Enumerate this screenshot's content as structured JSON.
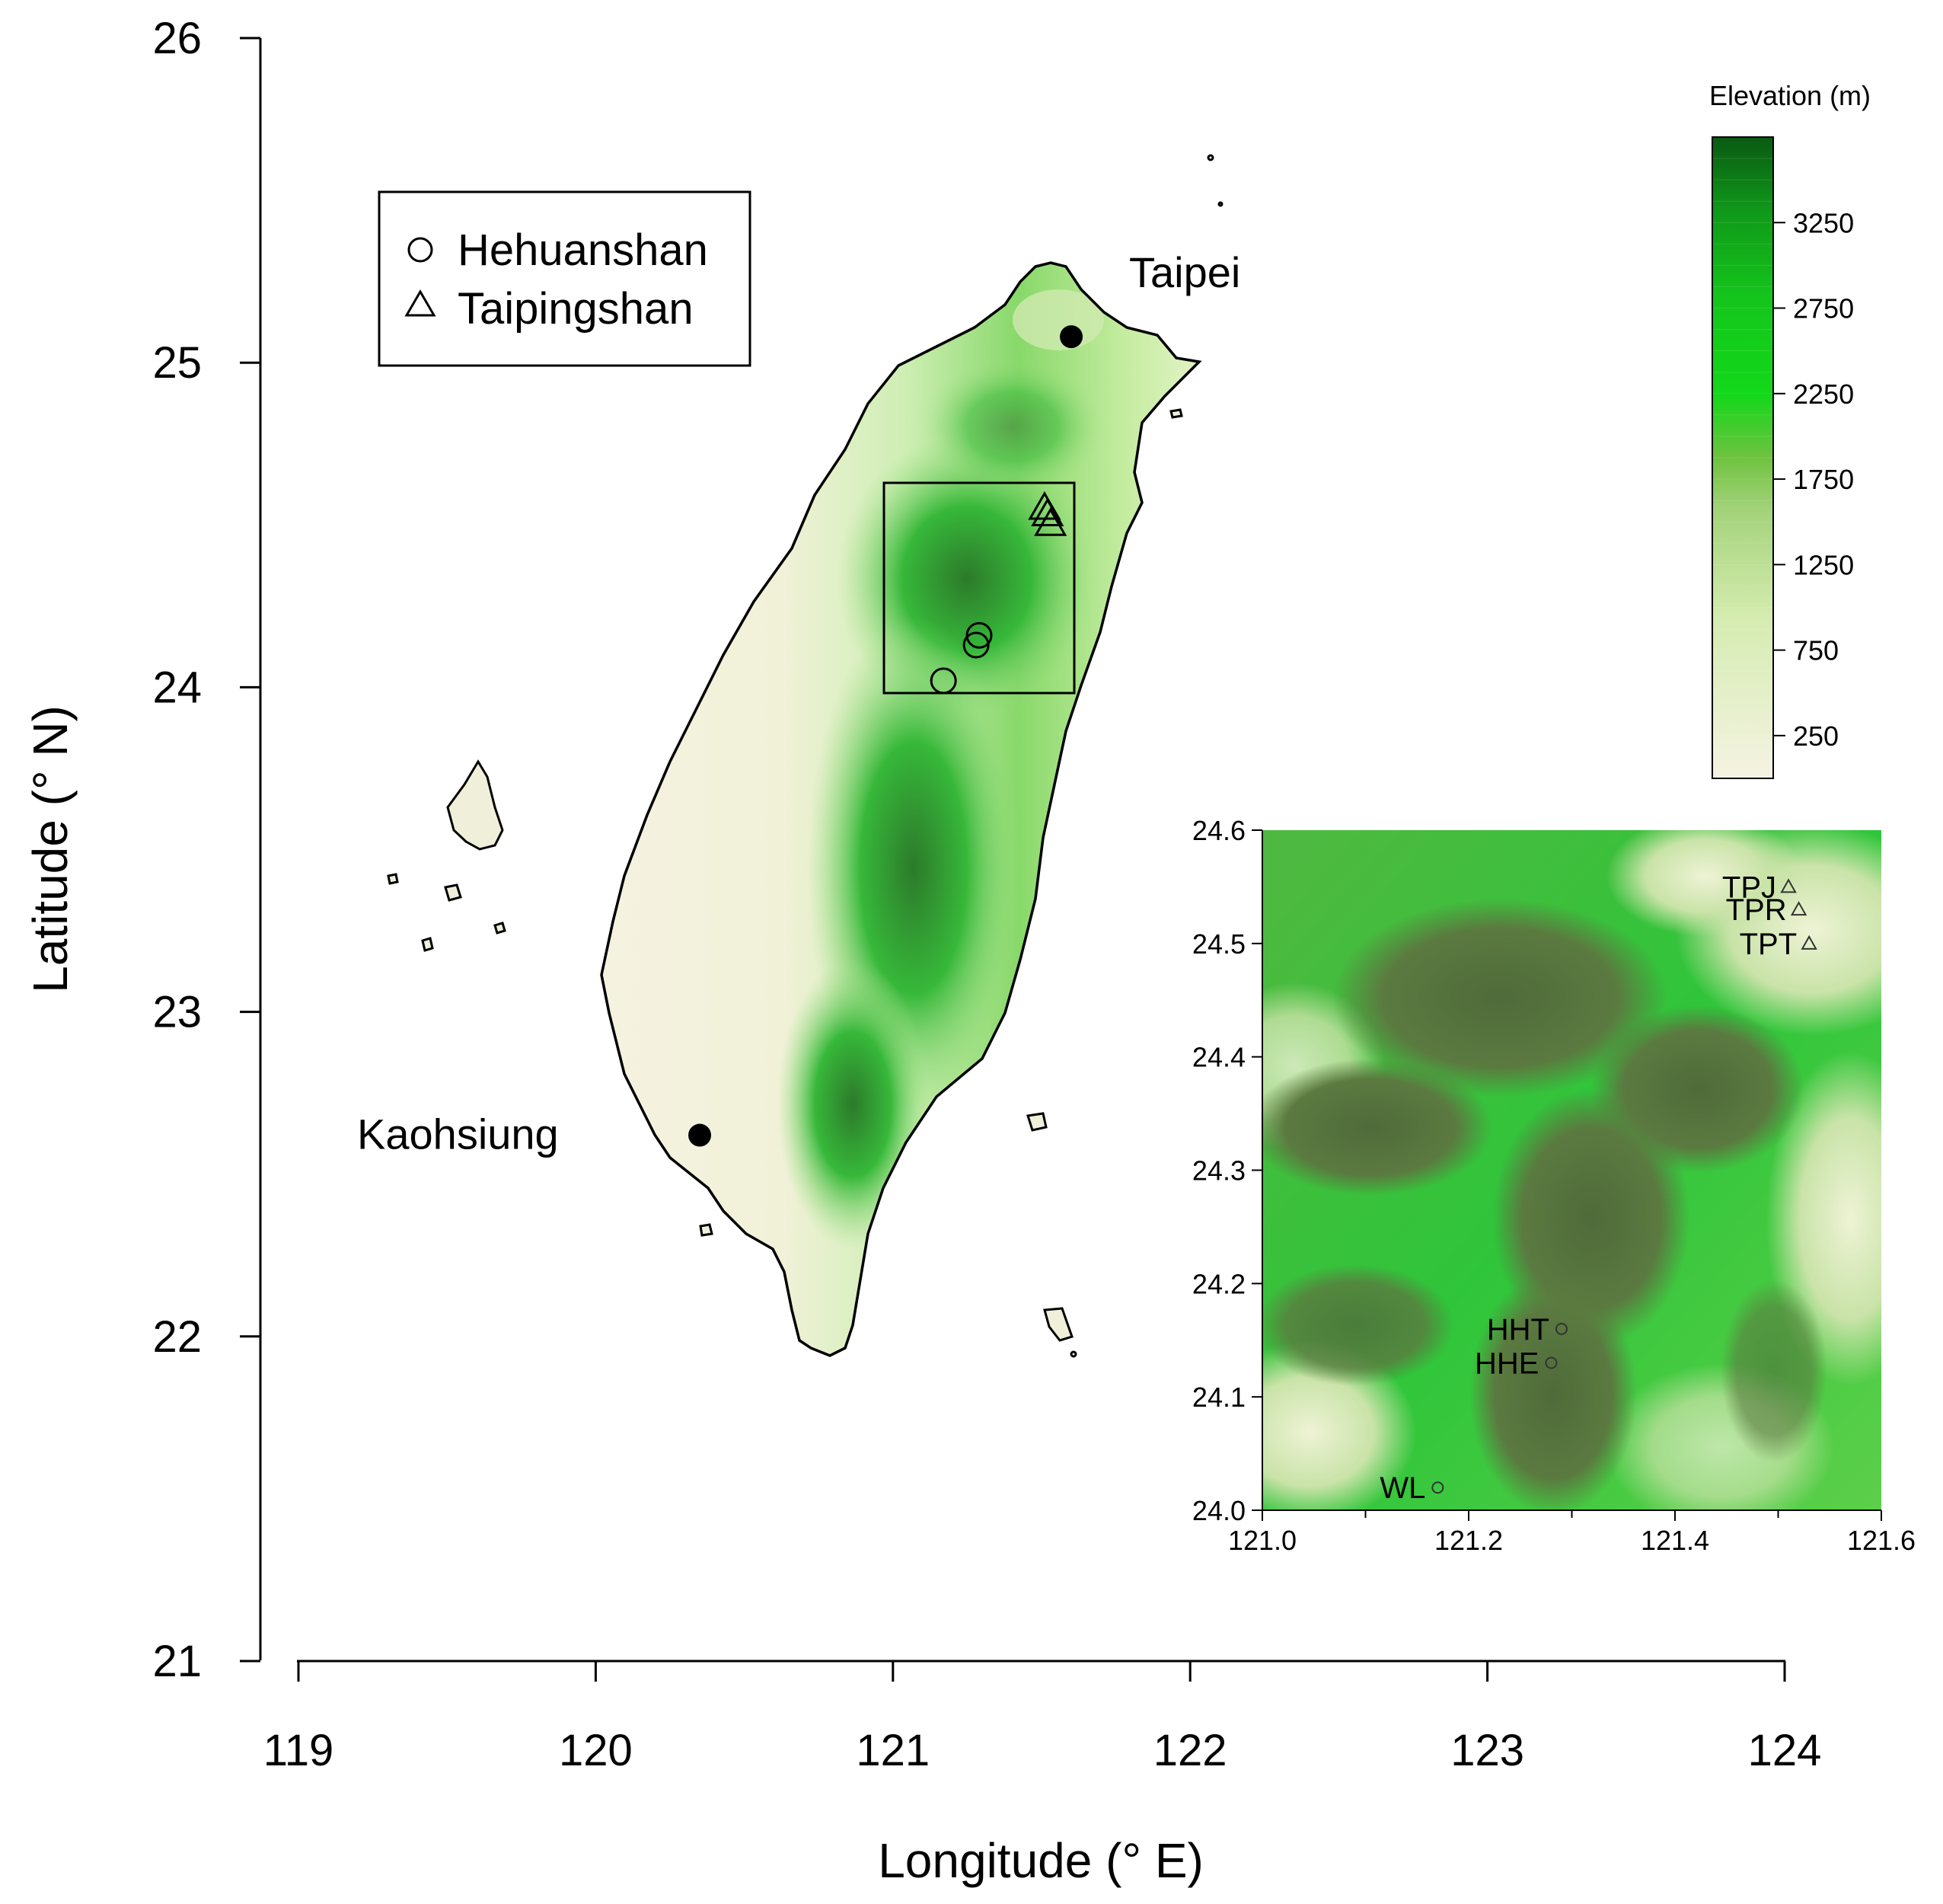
{
  "main_map": {
    "x_axis": {
      "label": "Longitude (° E)",
      "range": [
        119,
        124
      ],
      "ticks": [
        119,
        120,
        121,
        122,
        123,
        124
      ]
    },
    "y_axis": {
      "label": "Latitude (° N)",
      "range": [
        21,
        26
      ],
      "ticks": [
        21,
        22,
        23,
        24,
        25,
        26
      ]
    },
    "legend": {
      "position": "top-left",
      "items": [
        {
          "symbol": "circle-icon",
          "label": "Hehuanshan"
        },
        {
          "symbol": "triangle-icon",
          "label": "Taipingshan"
        }
      ]
    },
    "cities": [
      {
        "name": "Taipei",
        "lon": 121.6,
        "lat": 25.08
      },
      {
        "name": "Kaohsiung",
        "lon": 120.35,
        "lat": 22.62
      }
    ],
    "study_box": {
      "lon": [
        121.0,
        121.6
      ],
      "lat": [
        24.0,
        24.6
      ]
    },
    "hehuanshan_markers": [
      {
        "lon": 121.29,
        "lat": 24.16
      },
      {
        "lon": 121.28,
        "lat": 24.13
      },
      {
        "lon": 121.17,
        "lat": 24.02
      }
    ],
    "taipingshan_markers": [
      {
        "lon": 121.51,
        "lat": 24.55
      },
      {
        "lon": 121.52,
        "lat": 24.53
      },
      {
        "lon": 121.53,
        "lat": 24.5
      }
    ]
  },
  "colorbar": {
    "title": "Elevation (m)",
    "ticks": [
      250,
      750,
      1250,
      1750,
      2250,
      2750,
      3250
    ],
    "range": [
      0,
      3750
    ],
    "color_low": "#f5f3e3",
    "color_mid": "#9fe07a",
    "color_high": "#0a5a12"
  },
  "inset": {
    "x_ticks": [
      "121.0",
      "121.2",
      "121.4",
      "121.6"
    ],
    "y_ticks": [
      "24.0",
      "24.1",
      "24.2",
      "24.3",
      "24.4",
      "24.5",
      "24.6"
    ],
    "x_range": [
      121.0,
      121.6
    ],
    "y_range": [
      24.0,
      24.6
    ],
    "stations": [
      {
        "name": "TPJ",
        "type": "triangle-icon",
        "lon": 121.51,
        "lat": 24.55
      },
      {
        "name": "TPR",
        "type": "triangle-icon",
        "lon": 121.52,
        "lat": 24.53
      },
      {
        "name": "TPT",
        "type": "triangle-icon",
        "lon": 121.53,
        "lat": 24.5
      },
      {
        "name": "HHT",
        "type": "circle-icon",
        "lon": 121.29,
        "lat": 24.16
      },
      {
        "name": "HHE",
        "type": "circle-icon",
        "lon": 121.28,
        "lat": 24.13
      },
      {
        "name": "WL",
        "type": "circle-icon",
        "lon": 121.17,
        "lat": 24.02
      }
    ]
  }
}
